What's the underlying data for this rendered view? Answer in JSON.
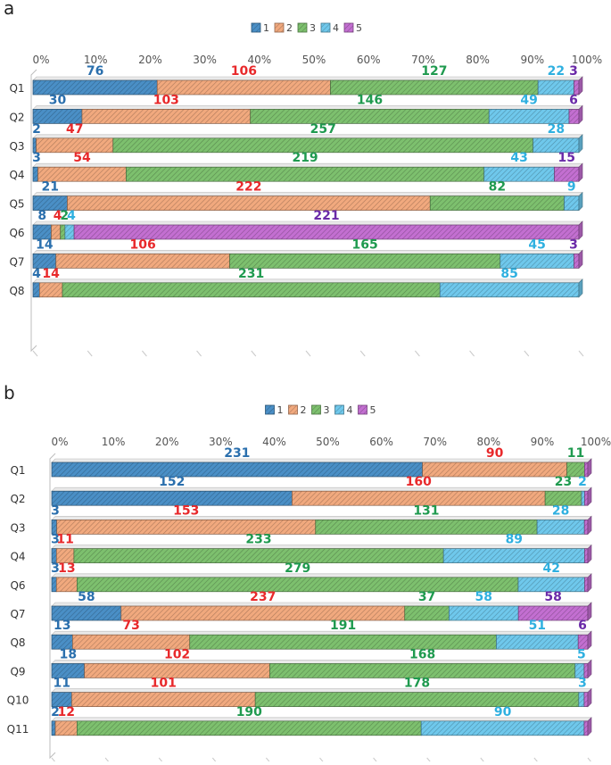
{
  "colors": {
    "1": "#4a8fc6",
    "2": "#f1a97e",
    "3": "#7dc06e",
    "4": "#6fc8ec",
    "5": "#c36fd1",
    "label1": "#2a6fad",
    "label2": "#e8292b",
    "label3": "#1f9a4f",
    "label4": "#2fb0e0",
    "label5": "#6a2aa8"
  },
  "chart_data": [
    {
      "type": "bar",
      "orientation": "horizontal",
      "stacked": "percent",
      "panel": "a",
      "legend": [
        "1",
        "2",
        "3",
        "4",
        "5"
      ],
      "xticks": [
        "0%",
        "10%",
        "20%",
        "30%",
        "40%",
        "50%",
        "60%",
        "70%",
        "80%",
        "90%",
        "100%"
      ],
      "categories": [
        "Q1",
        "Q2",
        "Q3",
        "Q4",
        "Q5",
        "Q6",
        "Q7",
        "Q8"
      ],
      "series": [
        {
          "name": "1",
          "values": [
            76,
            30,
            2,
            3,
            21,
            8,
            14,
            4
          ]
        },
        {
          "name": "2",
          "values": [
            106,
            103,
            47,
            54,
            222,
            4,
            106,
            14
          ]
        },
        {
          "name": "3",
          "values": [
            127,
            146,
            257,
            219,
            82,
            2,
            165,
            231
          ]
        },
        {
          "name": "4",
          "values": [
            22,
            49,
            28,
            43,
            9,
            4,
            45,
            85
          ]
        },
        {
          "name": "5",
          "values": [
            3,
            6,
            0,
            15,
            0,
            221,
            3,
            0
          ]
        }
      ],
      "labels": [
        [
          "76",
          "106",
          "127",
          "22",
          "3"
        ],
        [
          "30",
          "103",
          "146",
          "49",
          "6"
        ],
        [
          "2",
          "47",
          "257",
          "28",
          ""
        ],
        [
          "3",
          "54",
          "219",
          "43",
          "15"
        ],
        [
          "21",
          "222",
          "82",
          "9",
          ""
        ],
        [
          "8",
          "4",
          "2",
          "4",
          "221"
        ],
        [
          "14",
          "106",
          "165",
          "45",
          "3"
        ],
        [
          "4",
          "14",
          "231",
          "85",
          ""
        ]
      ]
    },
    {
      "type": "bar",
      "orientation": "horizontal",
      "stacked": "percent",
      "panel": "b",
      "legend": [
        "1",
        "2",
        "3",
        "4",
        "5"
      ],
      "xticks": [
        "0%",
        "10%",
        "20%",
        "30%",
        "40%",
        "50%",
        "60%",
        "70%",
        "80%",
        "90%",
        "100%"
      ],
      "categories": [
        "Q1",
        "Q2",
        "Q3",
        "Q4",
        "Q6",
        "Q7",
        "Q8",
        "Q9",
        "Q10",
        "Q11"
      ],
      "series": [
        {
          "name": "1",
          "values": [
            231,
            152,
            3,
            3,
            3,
            58,
            13,
            18,
            11,
            2
          ]
        },
        {
          "name": "2",
          "values": [
            90,
            160,
            153,
            11,
            13,
            237,
            73,
            102,
            101,
            12
          ]
        },
        {
          "name": "3",
          "values": [
            11,
            23,
            131,
            233,
            279,
            37,
            191,
            168,
            178,
            190
          ]
        },
        {
          "name": "4",
          "values": [
            0,
            2,
            28,
            89,
            42,
            58,
            51,
            5,
            3,
            90
          ]
        },
        {
          "name": "5",
          "values": [
            2,
            2,
            2,
            2,
            2,
            58,
            6,
            2,
            2,
            2
          ]
        }
      ],
      "labels": [
        [
          "231",
          "90",
          "11",
          "",
          ""
        ],
        [
          "152",
          "160",
          "23",
          "2",
          ""
        ],
        [
          "3",
          "153",
          "131",
          "28",
          ""
        ],
        [
          "3",
          "11",
          "233",
          "89",
          ""
        ],
        [
          "3",
          "13",
          "279",
          "42",
          ""
        ],
        [
          "58",
          "237",
          "37",
          "58",
          "58"
        ],
        [
          "13",
          "73",
          "191",
          "51",
          "6"
        ],
        [
          "18",
          "102",
          "168",
          "5",
          ""
        ],
        [
          "11",
          "101",
          "178",
          "3",
          ""
        ],
        [
          "2",
          "12",
          "190",
          "90",
          ""
        ]
      ]
    }
  ]
}
